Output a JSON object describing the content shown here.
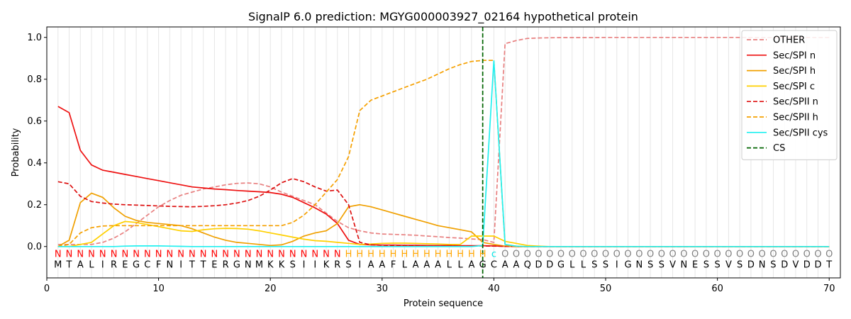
{
  "chart_data": {
    "type": "line",
    "title": "SignalP 6.0 prediction: MGYG000003927_02164 hypothetical protein",
    "xlabel": "Protein sequence",
    "ylabel": "Probability",
    "xlim": [
      0,
      71
    ],
    "ylim": [
      -0.15,
      1.05
    ],
    "x_ticks": [
      0,
      10,
      20,
      30,
      40,
      50,
      60,
      70
    ],
    "y_ticks": [
      0.0,
      0.2,
      0.4,
      0.6,
      0.8,
      1.0
    ],
    "grid": "vertical lines at each residue",
    "legend_position": "top-right",
    "sequence": "MTALIREGCFNITTERGNMKKSIIKRSIAAFLAAALLAGCAAQDDGLLSSIGNSSVNESSVSDNSDVDDT",
    "labels": "NNNNNNNNNNNNNNNNNNNNNNNNNNHHHHHHHHHHHHHCOOOOOOOOOOOOOOOOOOOOOOOOOOOOOOO",
    "label_colors": {
      "N": "#ff0000",
      "H": "#ffa500",
      "C": "#00e5e5",
      "O": "#808080"
    },
    "cleavage_site": 39,
    "series": [
      {
        "name": "OTHER",
        "color": "#e88080",
        "dash": true,
        "values": [
          0.01,
          0.01,
          0.01,
          0.01,
          0.02,
          0.04,
          0.07,
          0.11,
          0.15,
          0.19,
          0.22,
          0.245,
          0.26,
          0.275,
          0.285,
          0.295,
          0.302,
          0.304,
          0.3,
          0.285,
          0.26,
          0.24,
          0.22,
          0.2,
          0.16,
          0.12,
          0.09,
          0.075,
          0.065,
          0.06,
          0.058,
          0.056,
          0.054,
          0.05,
          0.047,
          0.043,
          0.04,
          0.036,
          0.033,
          0.02,
          0.97,
          0.985,
          0.995,
          0.997,
          0.998,
          0.999,
          0.999,
          0.999,
          0.999,
          1.0,
          1.0,
          1.0,
          1.0,
          1.0,
          1.0,
          1.0,
          1.0,
          1.0,
          1.0,
          1.0,
          1.0,
          1.0,
          1.0,
          1.0,
          1.0,
          1.0,
          1.0,
          1.0,
          1.0,
          1.0
        ]
      },
      {
        "name": "Sec/SPI n",
        "color": "#ee1111",
        "dash": false,
        "values": [
          0.67,
          0.64,
          0.46,
          0.39,
          0.365,
          0.355,
          0.345,
          0.335,
          0.325,
          0.315,
          0.305,
          0.295,
          0.285,
          0.28,
          0.275,
          0.272,
          0.268,
          0.265,
          0.262,
          0.258,
          0.25,
          0.235,
          0.21,
          0.185,
          0.155,
          0.11,
          0.03,
          0.01,
          0.008,
          0.007,
          0.007,
          0.006,
          0.006,
          0.005,
          0.005,
          0.005,
          0.004,
          0.004,
          0.004,
          0.003,
          0.001,
          0,
          0,
          0,
          0,
          0,
          0,
          0,
          0,
          0,
          0,
          0,
          0,
          0,
          0,
          0,
          0,
          0,
          0,
          0,
          0,
          0,
          0,
          0,
          0,
          0,
          0,
          0,
          0,
          0
        ]
      },
      {
        "name": "Sec/SPI h",
        "color": "#f0a000",
        "dash": false,
        "values": [
          0.0,
          0.03,
          0.21,
          0.255,
          0.235,
          0.185,
          0.145,
          0.125,
          0.115,
          0.11,
          0.105,
          0.1,
          0.085,
          0.065,
          0.045,
          0.03,
          0.02,
          0.015,
          0.01,
          0.005,
          0.008,
          0.025,
          0.05,
          0.065,
          0.075,
          0.11,
          0.19,
          0.2,
          0.19,
          0.175,
          0.16,
          0.145,
          0.13,
          0.115,
          0.1,
          0.09,
          0.08,
          0.07,
          0.02,
          0.01,
          0.002,
          0,
          0,
          0,
          0,
          0,
          0,
          0,
          0,
          0,
          0,
          0,
          0,
          0,
          0,
          0,
          0,
          0,
          0,
          0,
          0,
          0,
          0,
          0,
          0,
          0,
          0,
          0,
          0,
          0
        ]
      },
      {
        "name": "Sec/SPI c",
        "color": "#ffd000",
        "dash": false,
        "values": [
          0.0,
          0.0,
          0.01,
          0.02,
          0.06,
          0.1,
          0.12,
          0.115,
          0.105,
          0.095,
          0.085,
          0.075,
          0.072,
          0.08,
          0.085,
          0.087,
          0.086,
          0.083,
          0.075,
          0.065,
          0.055,
          0.045,
          0.035,
          0.028,
          0.025,
          0.02,
          0.015,
          0.01,
          0.012,
          0.015,
          0.016,
          0.016,
          0.015,
          0.013,
          0.012,
          0.01,
          0.01,
          0.05,
          0.05,
          0.05,
          0.025,
          0.015,
          0.005,
          0.002,
          0,
          0,
          0,
          0,
          0,
          0,
          0,
          0,
          0,
          0,
          0,
          0,
          0,
          0,
          0,
          0,
          0,
          0,
          0,
          0,
          0,
          0,
          0,
          0,
          0,
          0
        ]
      },
      {
        "name": "Sec/SPII n",
        "color": "#dd1111",
        "dash": true,
        "values": [
          0.31,
          0.3,
          0.24,
          0.215,
          0.208,
          0.203,
          0.2,
          0.198,
          0.196,
          0.194,
          0.192,
          0.191,
          0.19,
          0.192,
          0.195,
          0.2,
          0.208,
          0.22,
          0.24,
          0.27,
          0.305,
          0.325,
          0.31,
          0.285,
          0.265,
          0.27,
          0.2,
          0.02,
          0.008,
          0.006,
          0.005,
          0.005,
          0.005,
          0.005,
          0.004,
          0.004,
          0.003,
          0.003,
          0.003,
          0.002,
          0.001,
          0,
          0,
          0,
          0,
          0,
          0,
          0,
          0,
          0,
          0,
          0,
          0,
          0,
          0,
          0,
          0,
          0,
          0,
          0,
          0,
          0,
          0,
          0,
          0,
          0,
          0,
          0,
          0,
          0
        ]
      },
      {
        "name": "Sec/SPII h",
        "color": "#f5a000",
        "dash": true,
        "values": [
          0.0,
          0.01,
          0.065,
          0.09,
          0.098,
          0.1,
          0.1,
          0.1,
          0.1,
          0.1,
          0.1,
          0.1,
          0.1,
          0.1,
          0.1,
          0.1,
          0.1,
          0.1,
          0.1,
          0.1,
          0.1,
          0.115,
          0.15,
          0.2,
          0.26,
          0.32,
          0.43,
          0.65,
          0.7,
          0.72,
          0.74,
          0.76,
          0.78,
          0.8,
          0.825,
          0.85,
          0.87,
          0.885,
          0.89,
          0.89,
          0.005,
          0,
          0,
          0,
          0,
          0,
          0,
          0,
          0,
          0,
          0,
          0,
          0,
          0,
          0,
          0,
          0,
          0,
          0,
          0,
          0,
          0,
          0,
          0,
          0,
          0,
          0,
          0,
          0,
          0
        ]
      },
      {
        "name": "Sec/SPII cys",
        "color": "#22f0f0",
        "dash": false,
        "values": [
          0,
          0,
          0,
          0,
          0,
          0,
          0.002,
          0.003,
          0.003,
          0.003,
          0.002,
          0.001,
          0,
          0,
          0,
          0,
          0,
          0,
          0,
          0,
          0,
          0,
          0,
          0,
          0,
          0,
          0,
          0,
          0,
          0,
          0,
          0,
          0,
          0,
          0,
          0,
          0,
          0,
          0.005,
          0.89,
          0.01,
          0.002,
          0,
          0,
          0,
          0,
          0,
          0,
          0,
          0,
          0,
          0,
          0,
          0,
          0,
          0,
          0,
          0,
          0,
          0,
          0,
          0,
          0,
          0,
          0,
          0,
          0,
          0,
          0,
          0
        ]
      },
      {
        "name": "CS",
        "color": "#006400",
        "dash": true,
        "values": []
      }
    ]
  }
}
